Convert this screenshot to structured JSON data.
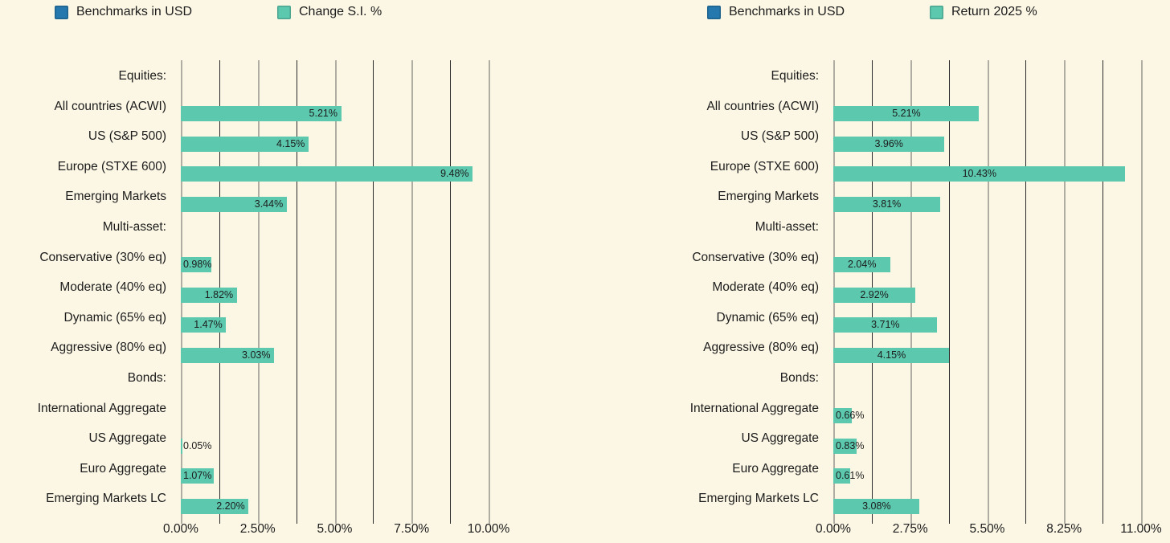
{
  "page": {
    "background": "#fcf7e5"
  },
  "colors": {
    "benchmark_blue": "#2478ad",
    "series_teal": "#5cc8ae",
    "grid_major": "#b0ada3",
    "grid_minor": "#2a2a2a",
    "text": "#1c1c1c"
  },
  "chart_data": [
    {
      "type": "bar",
      "orientation": "horizontal",
      "legend": [
        {
          "label": "Benchmarks in USD",
          "color": "#2478ad"
        },
        {
          "label": "Change S.I. %",
          "color": "#5cc8ae"
        }
      ],
      "series_name": "Change S.I. %",
      "xlim": [
        0,
        10
      ],
      "x_ticks": [
        "0.00%",
        "2.50%",
        "5.00%",
        "7.50%",
        "10.00%"
      ],
      "grid": "on",
      "label_anchor": "end",
      "rows": [
        {
          "label": "Equities:",
          "header": true,
          "value": null,
          "display": ""
        },
        {
          "label": "All countries (ACWI)",
          "header": false,
          "value": 5.21,
          "display": "5.21%"
        },
        {
          "label": "US (S&P 500)",
          "header": false,
          "value": 4.15,
          "display": "4.15%"
        },
        {
          "label": "Europe (STXE 600)",
          "header": false,
          "value": 9.48,
          "display": "9.48%"
        },
        {
          "label": "Emerging Markets",
          "header": false,
          "value": 3.44,
          "display": "3.44%"
        },
        {
          "label": "Multi-asset:",
          "header": true,
          "value": null,
          "display": ""
        },
        {
          "label": "Conservative (30% eq)",
          "header": false,
          "value": 0.98,
          "display": "0.98%"
        },
        {
          "label": "Moderate (40% eq)",
          "header": false,
          "value": 1.82,
          "display": "1.82%"
        },
        {
          "label": "Dynamic (65% eq)",
          "header": false,
          "value": 1.47,
          "display": "1.47%"
        },
        {
          "label": "Aggressive (80% eq)",
          "header": false,
          "value": 3.03,
          "display": "3.03%"
        },
        {
          "label": "Bonds:",
          "header": true,
          "value": null,
          "display": ""
        },
        {
          "label": "International Aggregate",
          "header": false,
          "value": null,
          "display": ""
        },
        {
          "label": "US Aggregate",
          "header": false,
          "value": 0.05,
          "display": "0.05%"
        },
        {
          "label": "Euro Aggregate",
          "header": false,
          "value": 1.07,
          "display": "1.07%"
        },
        {
          "label": "Emerging Markets LC",
          "header": false,
          "value": 2.2,
          "display": "2.20%"
        }
      ]
    },
    {
      "type": "bar",
      "orientation": "horizontal",
      "legend": [
        {
          "label": "Benchmarks in USD",
          "color": "#2478ad"
        },
        {
          "label": "Return 2025 %",
          "color": "#5cc8ae"
        }
      ],
      "series_name": "Return 2025 %",
      "xlim": [
        0,
        11
      ],
      "x_ticks": [
        "0.00%",
        "2.75%",
        "5.50%",
        "8.25%",
        "11.00%"
      ],
      "grid": "on",
      "label_anchor": "center",
      "rows": [
        {
          "label": "Equities:",
          "header": true,
          "value": null,
          "display": ""
        },
        {
          "label": "All countries (ACWI)",
          "header": false,
          "value": 5.21,
          "display": "5.21%"
        },
        {
          "label": "US (S&P 500)",
          "header": false,
          "value": 3.96,
          "display": "3.96%"
        },
        {
          "label": "Europe (STXE 600)",
          "header": false,
          "value": 10.43,
          "display": "10.43%"
        },
        {
          "label": "Emerging Markets",
          "header": false,
          "value": 3.81,
          "display": "3.81%"
        },
        {
          "label": "Multi-asset:",
          "header": true,
          "value": null,
          "display": ""
        },
        {
          "label": "Conservative (30% eq)",
          "header": false,
          "value": 2.04,
          "display": "2.04%"
        },
        {
          "label": "Moderate (40% eq)",
          "header": false,
          "value": 2.92,
          "display": "2.92%"
        },
        {
          "label": "Dynamic (65% eq)",
          "header": false,
          "value": 3.71,
          "display": "3.71%"
        },
        {
          "label": "Aggressive (80% eq)",
          "header": false,
          "value": 4.15,
          "display": "4.15%"
        },
        {
          "label": "Bonds:",
          "header": true,
          "value": null,
          "display": ""
        },
        {
          "label": "International Aggregate",
          "header": false,
          "value": 0.66,
          "display": "0.66%"
        },
        {
          "label": "US Aggregate",
          "header": false,
          "value": 0.83,
          "display": "0.83%"
        },
        {
          "label": "Euro Aggregate",
          "header": false,
          "value": 0.61,
          "display": "0.61%"
        },
        {
          "label": "Emerging Markets LC",
          "header": false,
          "value": 3.08,
          "display": "3.08%"
        }
      ]
    }
  ]
}
